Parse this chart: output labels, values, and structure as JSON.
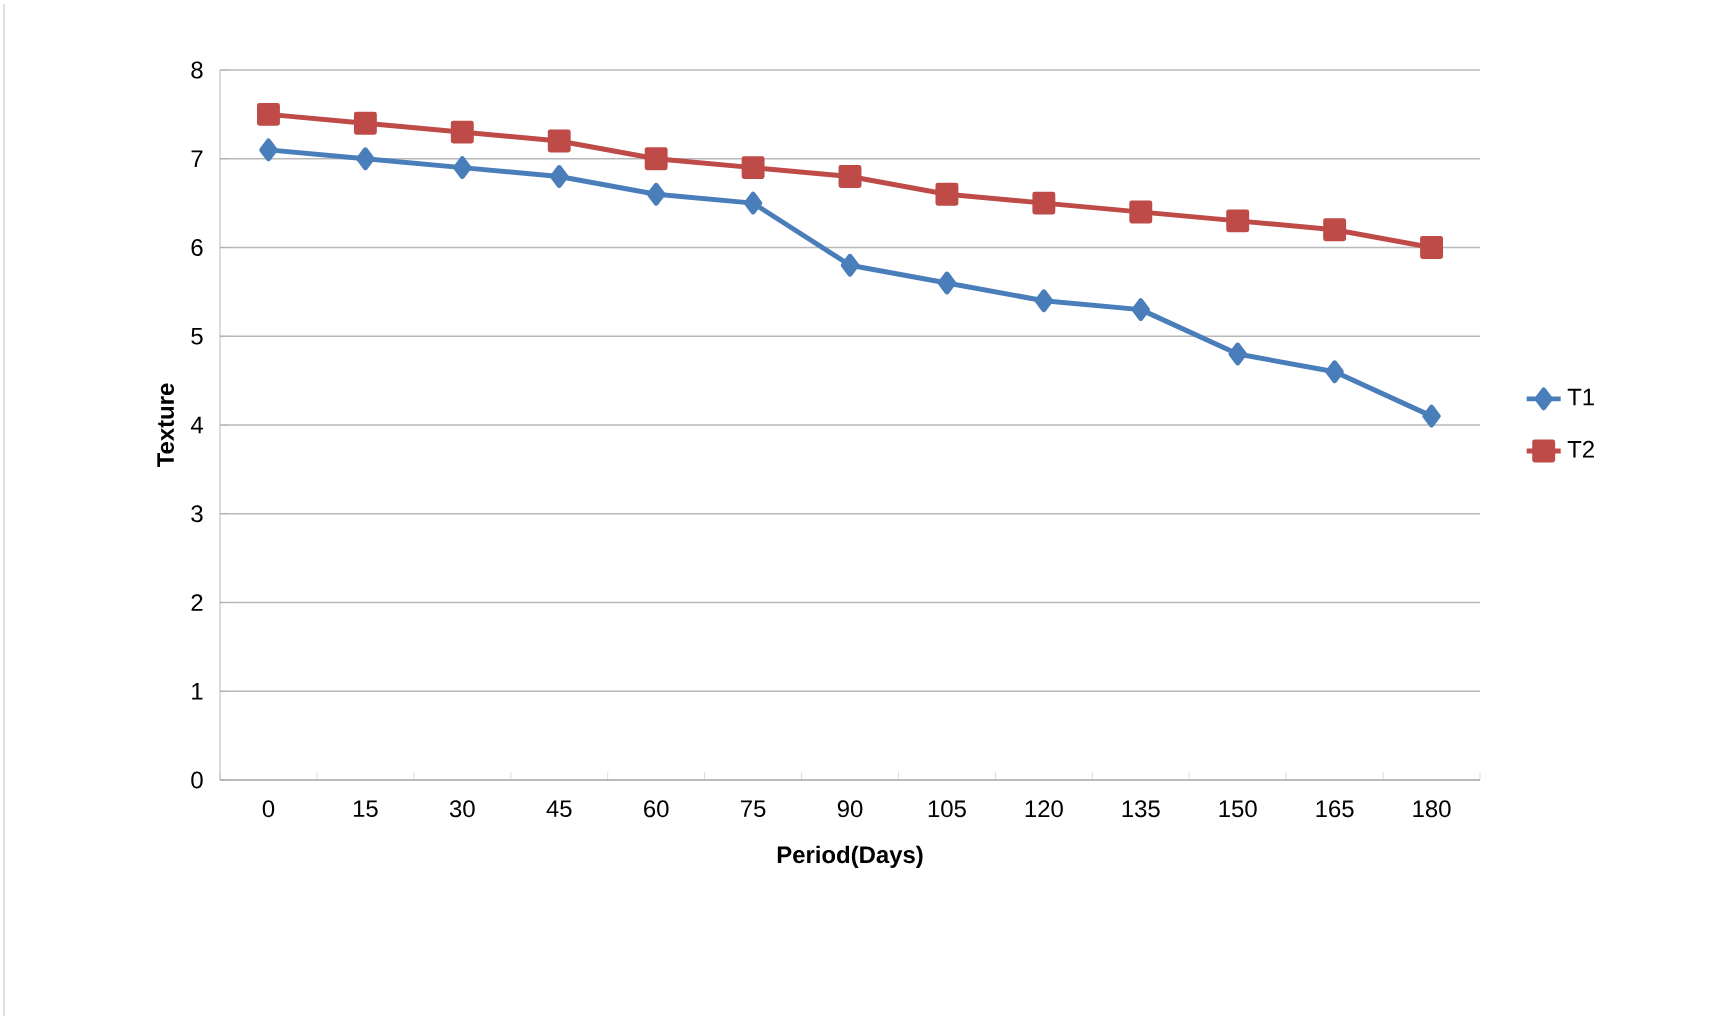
{
  "chart_data": {
    "type": "line",
    "xlabel": "Period(Days)",
    "ylabel": "Texture",
    "categories": [
      "0",
      "15",
      "30",
      "45",
      "60",
      "75",
      "90",
      "105",
      "120",
      "135",
      "150",
      "165",
      "180"
    ],
    "series": [
      {
        "name": "T1",
        "color": "#4a7ebb",
        "marker": "diamond",
        "values": [
          7.1,
          7.0,
          6.9,
          6.8,
          6.6,
          6.5,
          5.8,
          5.6,
          5.4,
          5.3,
          4.8,
          4.6,
          4.1
        ]
      },
      {
        "name": "T2",
        "color": "#be4b48",
        "marker": "square",
        "values": [
          7.5,
          7.4,
          7.3,
          7.2,
          7.0,
          6.9,
          6.8,
          6.6,
          6.5,
          6.4,
          6.3,
          6.2,
          6.0
        ]
      }
    ],
    "ylim": [
      0,
      8
    ],
    "yticks": [
      0,
      1,
      2,
      3,
      4,
      5,
      6,
      7,
      8
    ],
    "grid": "y",
    "legend": "right",
    "line_style": "solid"
  }
}
